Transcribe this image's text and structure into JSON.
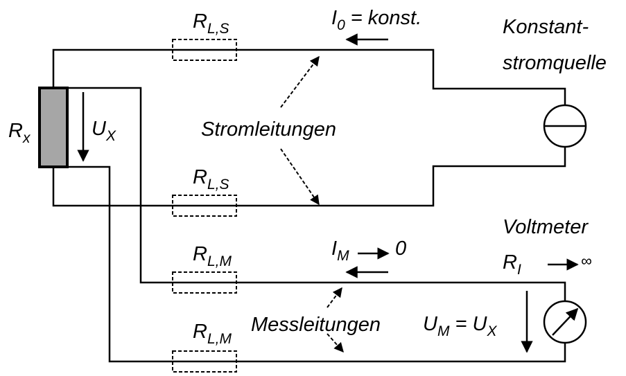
{
  "labels": [
    {
      "parts": [
        {
          "text": "R"
        },
        {
          "sub": "L,S"
        }
      ]
    },
    {
      "parts": [
        {
          "text": "I"
        },
        {
          "sub": "0"
        },
        {
          "text": " = konst."
        }
      ]
    },
    {
      "parts": [
        {
          "text": "Konstant-"
        }
      ]
    },
    {
      "parts": [
        {
          "text": "stromquelle"
        }
      ]
    },
    {
      "parts": [
        {
          "text": "R"
        },
        {
          "sub": "x"
        }
      ]
    },
    {
      "parts": [
        {
          "text": "U"
        },
        {
          "sub": "X"
        }
      ]
    },
    {
      "parts": [
        {
          "text": "Stromleitungen"
        }
      ]
    },
    {
      "parts": [
        {
          "text": "R"
        },
        {
          "sub": "L,S"
        }
      ]
    },
    {
      "parts": [
        {
          "text": "Voltmeter"
        }
      ]
    },
    {
      "parts": [
        {
          "text": "R"
        },
        {
          "sub": "I"
        },
        {
          "text": "∞"
        }
      ]
    },
    {
      "parts": [
        {
          "text": "R"
        },
        {
          "sub": "L,M"
        }
      ]
    },
    {
      "parts": [
        {
          "text": "I"
        },
        {
          "sub": "M"
        },
        {
          "text": "0"
        }
      ]
    },
    {
      "parts": [
        {
          "text": "Messleitungen"
        }
      ]
    },
    {
      "parts": [
        {
          "text": "U"
        },
        {
          "sub": "M"
        },
        {
          "text": " = U"
        },
        {
          "sub": "X"
        }
      ]
    },
    {
      "parts": [
        {
          "text": "R"
        },
        {
          "sub": "L,M"
        }
      ]
    }
  ]
}
